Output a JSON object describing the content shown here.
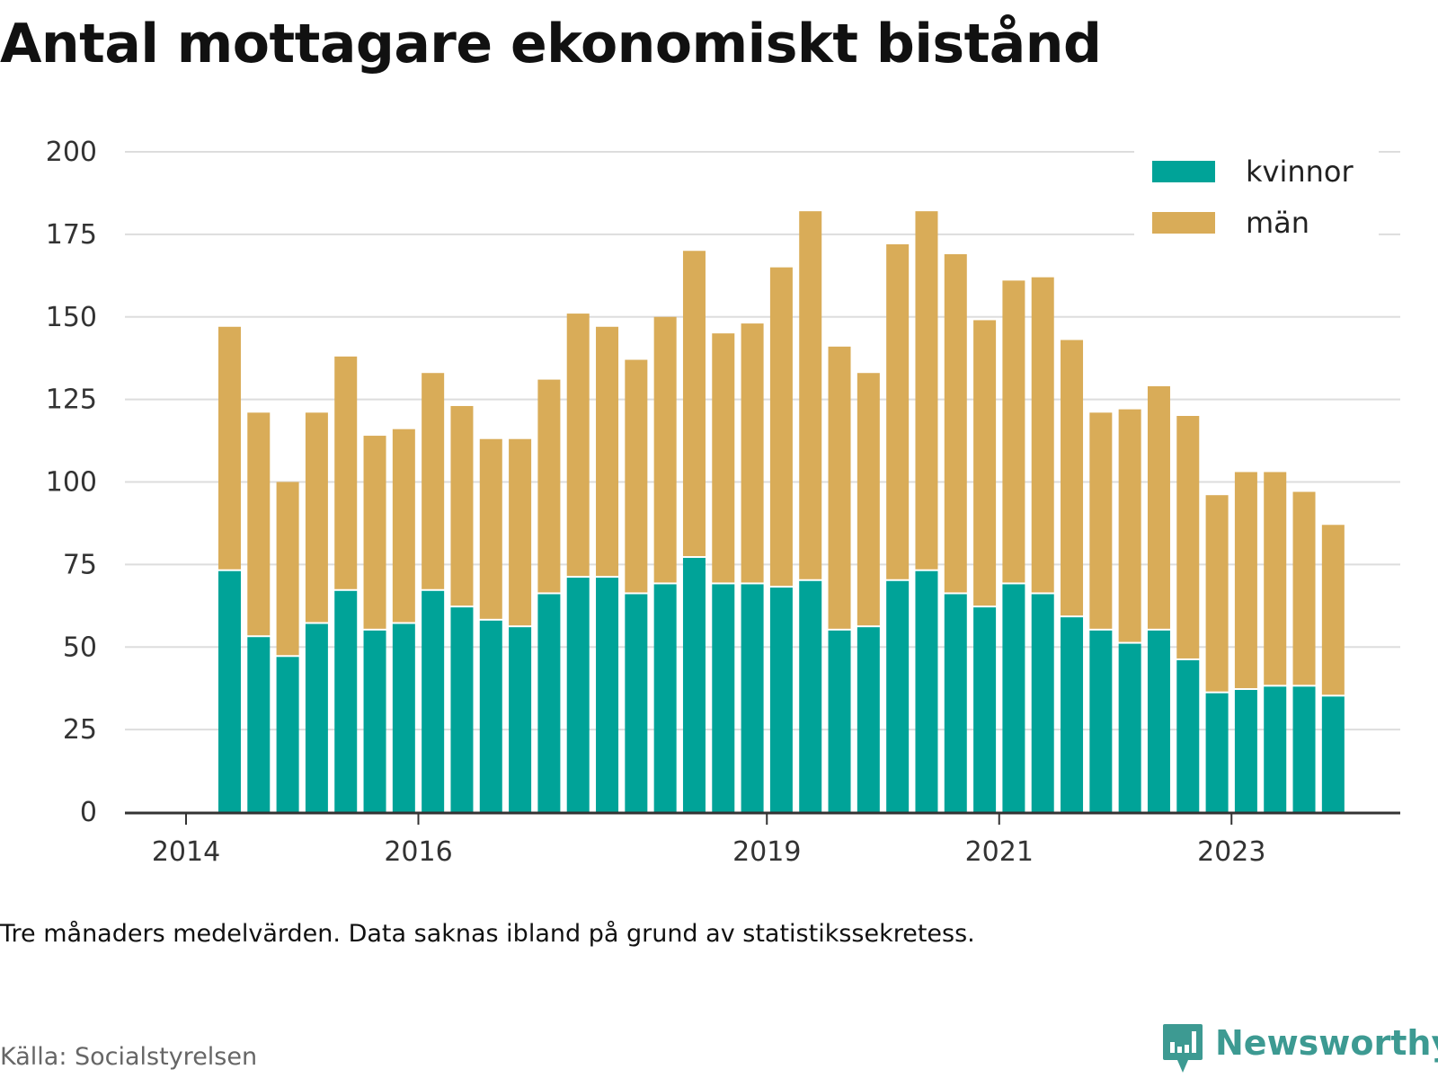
{
  "title": "Antal mottagare ekonomiskt bistånd",
  "note": "Tre månaders medelvärden. Data saknas ibland på grund av statistikssekretess.",
  "source": "Källa: Socialstyrelsen",
  "brand": "Newsworthy",
  "icons": {
    "brand": "newsworthy-logo-icon"
  },
  "colors": {
    "kvinnor": "#00a398",
    "man": "#d9ac58",
    "grid": "#dddddd",
    "axis": "#333333"
  },
  "chart_data": {
    "type": "bar",
    "stacked": true,
    "ylim": [
      0,
      200
    ],
    "yticks": [
      0,
      25,
      50,
      75,
      100,
      125,
      150,
      175,
      200
    ],
    "xticks": [
      "2014",
      "2016",
      "2019",
      "2021",
      "2023"
    ],
    "legend_position": "top-right",
    "grid": true,
    "categories": [
      "2014-Q2",
      "2014-Q3",
      "2014-Q4",
      "2015-Q1",
      "2015-Q2",
      "2015-Q3",
      "2015-Q4",
      "2016-Q1",
      "2016-Q2",
      "2016-Q3",
      "2016-Q4",
      "2017-Q1",
      "2017-Q2",
      "2017-Q3",
      "2017-Q4",
      "2018-Q1",
      "2018-Q2",
      "2018-Q3",
      "2018-Q4",
      "2019-Q1",
      "2019-Q2",
      "2019-Q3",
      "2019-Q4",
      "2020-Q1",
      "2020-Q2",
      "2020-Q3",
      "2020-Q4",
      "2021-Q1",
      "2021-Q2",
      "2021-Q3",
      "2021-Q4",
      "2022-Q1",
      "2022-Q2",
      "2022-Q3",
      "2022-Q4",
      "2023-Q1",
      "2023-Q2",
      "2023-Q3",
      "2023-Q4"
    ],
    "series": [
      {
        "name": "kvinnor",
        "values": [
          73,
          53,
          47,
          57,
          67,
          55,
          57,
          67,
          62,
          58,
          56,
          66,
          71,
          71,
          66,
          69,
          77,
          69,
          69,
          68,
          70,
          55,
          56,
          70,
          73,
          66,
          62,
          69,
          66,
          59,
          55,
          51,
          55,
          46,
          36,
          37,
          38,
          38,
          35
        ]
      },
      {
        "name": "män",
        "values": [
          74,
          68,
          53,
          64,
          71,
          59,
          59,
          66,
          61,
          55,
          57,
          65,
          80,
          76,
          71,
          81,
          93,
          76,
          79,
          97,
          112,
          86,
          77,
          102,
          109,
          103,
          87,
          92,
          96,
          84,
          66,
          71,
          74,
          74,
          60,
          66,
          65,
          59,
          52
        ]
      }
    ]
  }
}
